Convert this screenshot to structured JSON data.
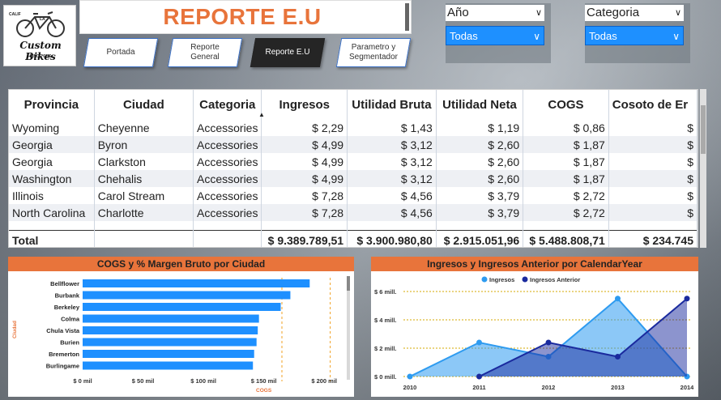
{
  "logo": {
    "calif": "CALIF",
    "la": "LA",
    "name": "Custom Bikes",
    "since": "SINCE 60'S"
  },
  "header": {
    "title": "REPORTE E.U"
  },
  "nav": [
    {
      "label": "Portada"
    },
    {
      "label": "Reporte General"
    },
    {
      "label": "Reporte E.U"
    },
    {
      "label": "Parametro y Segmentador"
    }
  ],
  "slicers": {
    "year": {
      "label": "Año",
      "value": "Todas"
    },
    "category": {
      "label": "Categoria",
      "value": "Todas"
    }
  },
  "table": {
    "columns": [
      "Provincia",
      "Ciudad",
      "Categoria",
      "Ingresos",
      "Utilidad Bruta",
      "Utilidad Neta",
      "COGS",
      "Cosoto de Er"
    ],
    "rows": [
      [
        "Wyoming",
        "Cheyenne",
        "Accessories",
        "$ 2,29",
        "$ 1,43",
        "$ 1,19",
        "$ 0,86",
        "$"
      ],
      [
        "Georgia",
        "Byron",
        "Accessories",
        "$ 4,99",
        "$ 3,12",
        "$ 2,60",
        "$ 1,87",
        "$"
      ],
      [
        "Georgia",
        "Clarkston",
        "Accessories",
        "$ 4,99",
        "$ 3,12",
        "$ 2,60",
        "$ 1,87",
        "$"
      ],
      [
        "Washington",
        "Chehalis",
        "Accessories",
        "$ 4,99",
        "$ 3,12",
        "$ 2,60",
        "$ 1,87",
        "$"
      ],
      [
        "Illinois",
        "Carol Stream",
        "Accessories",
        "$ 7,28",
        "$ 4,56",
        "$ 3,79",
        "$ 2,72",
        "$"
      ],
      [
        "North Carolina",
        "Charlotte",
        "Accessories",
        "$ 7,28",
        "$ 4,56",
        "$ 3,79",
        "$ 2,72",
        "$"
      ]
    ],
    "total": [
      "Total",
      "",
      "",
      "$ 9.389.789,51",
      "$ 3.900.980,80",
      "$ 2.915.051,96",
      "$ 5.488.808,71",
      "$ 234.745"
    ]
  },
  "chart_data": [
    {
      "type": "bar",
      "orientation": "horizontal",
      "title": "COGS y % Margen Bruto por Ciudad",
      "xlabel": "COGS",
      "ylabel": "Ciudad",
      "categories": [
        "Bellflower",
        "Burbank",
        "Berkeley",
        "Colma",
        "Chula Vista",
        "Burien",
        "Bremerton",
        "Burlingame"
      ],
      "values": [
        188,
        172,
        164,
        146,
        145,
        144,
        142,
        141
      ],
      "xlim": [
        0,
        220
      ],
      "xticks": [
        "$ 0 mil",
        "$ 50 mil",
        "$ 100 mil",
        "$ 150 mil",
        "$ 200 mil"
      ],
      "xtick_values": [
        0,
        50,
        100,
        150,
        200
      ],
      "colors": {
        "bar": "#1e90ff",
        "refline": "#f0a020"
      }
    },
    {
      "type": "area",
      "title": "Ingresos y Ingresos Anterior por CalendarYear",
      "categories": [
        "2010",
        "2011",
        "2012",
        "2013",
        "2014"
      ],
      "series": [
        {
          "name": "Ingresos",
          "values": [
            0.0,
            2.4,
            1.4,
            5.5,
            0.0
          ],
          "color": "#2e9bf0"
        },
        {
          "name": "Ingresos Anterior",
          "values": [
            null,
            0.0,
            2.4,
            1.4,
            5.5
          ],
          "color": "#1a2a9e"
        }
      ],
      "ylim": [
        0,
        6
      ],
      "yticks": [
        "$ 0 mill.",
        "$ 2 mill.",
        "$ 4 mill.",
        "$ 6 mill."
      ],
      "ytick_values": [
        0,
        2,
        4,
        6
      ],
      "legend": "top-center",
      "grid": true
    }
  ]
}
